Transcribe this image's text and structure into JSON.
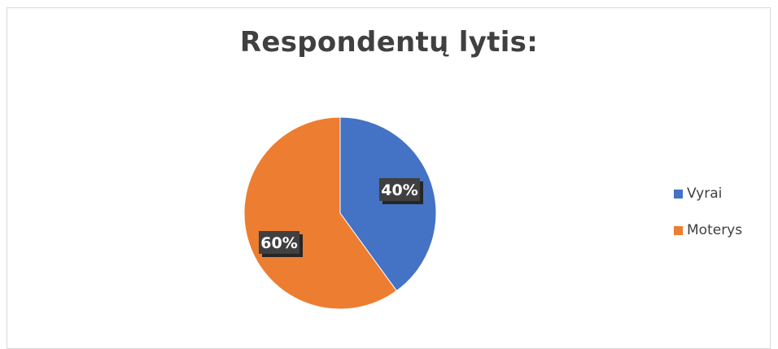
{
  "chart_data": {
    "type": "pie",
    "title": "Respondentų lytis:",
    "categories": [
      "Vyrai",
      "Moterys"
    ],
    "values": [
      40,
      60
    ],
    "data_labels": [
      "40%",
      "60%"
    ],
    "colors": [
      "#4472C4",
      "#ED7D31"
    ],
    "legend_position": "right"
  }
}
